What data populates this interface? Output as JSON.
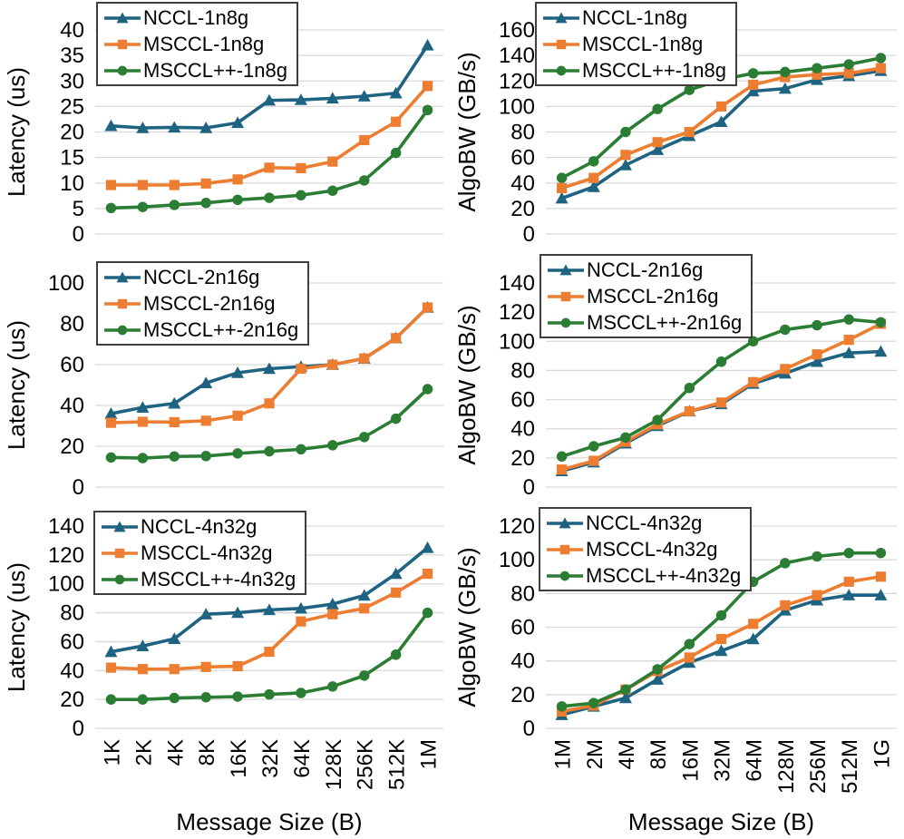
{
  "figure": {
    "x_axis_label": "Message Size (B)",
    "latency_axis_label": "Latency (us)",
    "bandwidth_axis_label": "AlgoBW (GB/s)"
  },
  "colors": {
    "nccl": "#1F6382",
    "msccl": "#ED7D31",
    "mscclpp": "#2B7D34",
    "grid": "#D9D9D9",
    "text": "#000000",
    "legend_border": "#3F3F3F"
  },
  "chart_data": [
    {
      "id": "latency-1n8g",
      "type": "line",
      "ylabel": "Latency (us)",
      "xlabel": "",
      "ylim": [
        0,
        40
      ],
      "ytick_step": 5,
      "grid": true,
      "legend_position": "top-left",
      "categories": [
        "1K",
        "2K",
        "4K",
        "8K",
        "16K",
        "32K",
        "64K",
        "128K",
        "256K",
        "512K",
        "1M"
      ],
      "series": [
        {
          "name": "NCCL-1n8g",
          "marker": "triangle",
          "color": "#1F6382",
          "values": [
            21.2,
            20.8,
            20.9,
            20.8,
            21.8,
            26.2,
            26.3,
            26.6,
            27.0,
            27.6,
            37.0
          ]
        },
        {
          "name": "MSCCL-1n8g",
          "marker": "square",
          "color": "#ED7D31",
          "values": [
            9.6,
            9.6,
            9.6,
            9.9,
            10.7,
            13.0,
            12.9,
            14.2,
            18.4,
            22.0,
            29.0
          ]
        },
        {
          "name": "MSCCL++-1n8g",
          "marker": "circle",
          "color": "#2B7D34",
          "values": [
            5.1,
            5.3,
            5.7,
            6.1,
            6.7,
            7.1,
            7.6,
            8.5,
            10.5,
            15.9,
            24.3
          ]
        }
      ]
    },
    {
      "id": "algobw-1n8g",
      "type": "line",
      "ylabel": "AlgoBW (GB/s)",
      "xlabel": "",
      "ylim": [
        0,
        160
      ],
      "ytick_step": 20,
      "grid": true,
      "legend_position": "top-left",
      "categories": [
        "1M",
        "2M",
        "4M",
        "8M",
        "16M",
        "32M",
        "64M",
        "128M",
        "256M",
        "512M",
        "1G"
      ],
      "series": [
        {
          "name": "NCCL-1n8g",
          "marker": "triangle",
          "color": "#1F6382",
          "values": [
            28,
            37,
            54,
            66,
            77,
            88,
            112,
            114,
            121,
            124,
            128
          ]
        },
        {
          "name": "MSCCL-1n8g",
          "marker": "square",
          "color": "#ED7D31",
          "values": [
            36,
            44,
            62,
            72,
            80,
            100,
            117,
            123,
            125,
            126,
            130
          ]
        },
        {
          "name": "MSCCL++-1n8g",
          "marker": "circle",
          "color": "#2B7D34",
          "values": [
            44,
            57,
            80,
            98,
            113,
            121,
            126,
            127,
            130,
            133,
            138
          ]
        }
      ]
    },
    {
      "id": "latency-2n16g",
      "type": "line",
      "ylabel": "Latency (us)",
      "xlabel": "",
      "ylim": [
        0,
        100
      ],
      "ytick_step": 20,
      "grid": true,
      "legend_position": "top-left",
      "categories": [
        "1K",
        "2K",
        "4K",
        "8K",
        "16K",
        "32K",
        "64K",
        "128K",
        "256K",
        "512K",
        "1M"
      ],
      "series": [
        {
          "name": "NCCL-2n16g",
          "marker": "triangle",
          "color": "#1F6382",
          "values": [
            36,
            39,
            41,
            51,
            56,
            58,
            59,
            60,
            63,
            73,
            88
          ]
        },
        {
          "name": "MSCCL-2n16g",
          "marker": "square",
          "color": "#ED7D31",
          "values": [
            31.5,
            32,
            31.8,
            32.5,
            35,
            41,
            58,
            60,
            63,
            73,
            88
          ]
        },
        {
          "name": "MSCCL++-2n16g",
          "marker": "circle",
          "color": "#2B7D34",
          "values": [
            14.5,
            14.2,
            15,
            15.2,
            16.5,
            17.5,
            18.5,
            20.5,
            24.5,
            33.5,
            48
          ]
        }
      ]
    },
    {
      "id": "algobw-2n16g",
      "type": "line",
      "ylabel": "AlgoBW (GB/s)",
      "xlabel": "",
      "ylim": [
        0,
        140
      ],
      "ytick_step": 20,
      "grid": true,
      "legend_position": "top-left",
      "categories": [
        "1M",
        "2M",
        "4M",
        "8M",
        "16M",
        "32M",
        "64M",
        "128M",
        "256M",
        "512M",
        "1G"
      ],
      "series": [
        {
          "name": "NCCL-2n16g",
          "marker": "triangle",
          "color": "#1F6382",
          "values": [
            11,
            17,
            30,
            42,
            52,
            57,
            71,
            78,
            86,
            92,
            93
          ]
        },
        {
          "name": "MSCCL-2n16g",
          "marker": "square",
          "color": "#ED7D31",
          "values": [
            12,
            18,
            31,
            43,
            52,
            58,
            72,
            81,
            91,
            101,
            112
          ]
        },
        {
          "name": "MSCCL++-2n16g",
          "marker": "circle",
          "color": "#2B7D34",
          "values": [
            21,
            28,
            34,
            46,
            68,
            86,
            100,
            108,
            111,
            115,
            113
          ]
        }
      ]
    },
    {
      "id": "latency-4n32g",
      "type": "line",
      "ylabel": "Latency (us)",
      "xlabel": "Message Size (B)",
      "ylim": [
        0,
        140
      ],
      "ytick_step": 20,
      "grid": true,
      "legend_position": "top-left",
      "categories": [
        "1K",
        "2K",
        "4K",
        "8K",
        "16K",
        "32K",
        "64K",
        "128K",
        "256K",
        "512K",
        "1M"
      ],
      "series": [
        {
          "name": "NCCL-4n32g",
          "marker": "triangle",
          "color": "#1F6382",
          "values": [
            53,
            57,
            62,
            79,
            80,
            82,
            83,
            86,
            92,
            107,
            125
          ]
        },
        {
          "name": "MSCCL-4n32g",
          "marker": "square",
          "color": "#ED7D31",
          "values": [
            42,
            41,
            41,
            42.5,
            43,
            53,
            74,
            79,
            83,
            94,
            107
          ]
        },
        {
          "name": "MSCCL++-4n32g",
          "marker": "circle",
          "color": "#2B7D34",
          "values": [
            20,
            20,
            21,
            21.5,
            22,
            23.5,
            24.5,
            29,
            36.5,
            51,
            80
          ]
        }
      ]
    },
    {
      "id": "algobw-4n32g",
      "type": "line",
      "ylabel": "AlgoBW (GB/s)",
      "xlabel": "Message Size (B)",
      "ylim": [
        0,
        120
      ],
      "ytick_step": 20,
      "grid": true,
      "legend_position": "top-left",
      "categories": [
        "1M",
        "2M",
        "4M",
        "8M",
        "16M",
        "32M",
        "64M",
        "128M",
        "256M",
        "512M",
        "1G"
      ],
      "series": [
        {
          "name": "NCCL-4n32g",
          "marker": "triangle",
          "color": "#1F6382",
          "values": [
            8,
            13,
            18,
            29,
            39,
            46,
            53,
            70,
            76,
            79,
            79
          ]
        },
        {
          "name": "MSCCL-4n32g",
          "marker": "square",
          "color": "#ED7D31",
          "values": [
            10,
            13.5,
            23,
            34,
            42,
            53,
            62,
            73,
            79,
            87,
            90
          ]
        },
        {
          "name": "MSCCL++-4n32g",
          "marker": "circle",
          "color": "#2B7D34",
          "values": [
            13,
            15,
            23,
            35,
            50,
            67,
            87,
            98,
            102,
            104,
            104
          ]
        }
      ]
    }
  ]
}
